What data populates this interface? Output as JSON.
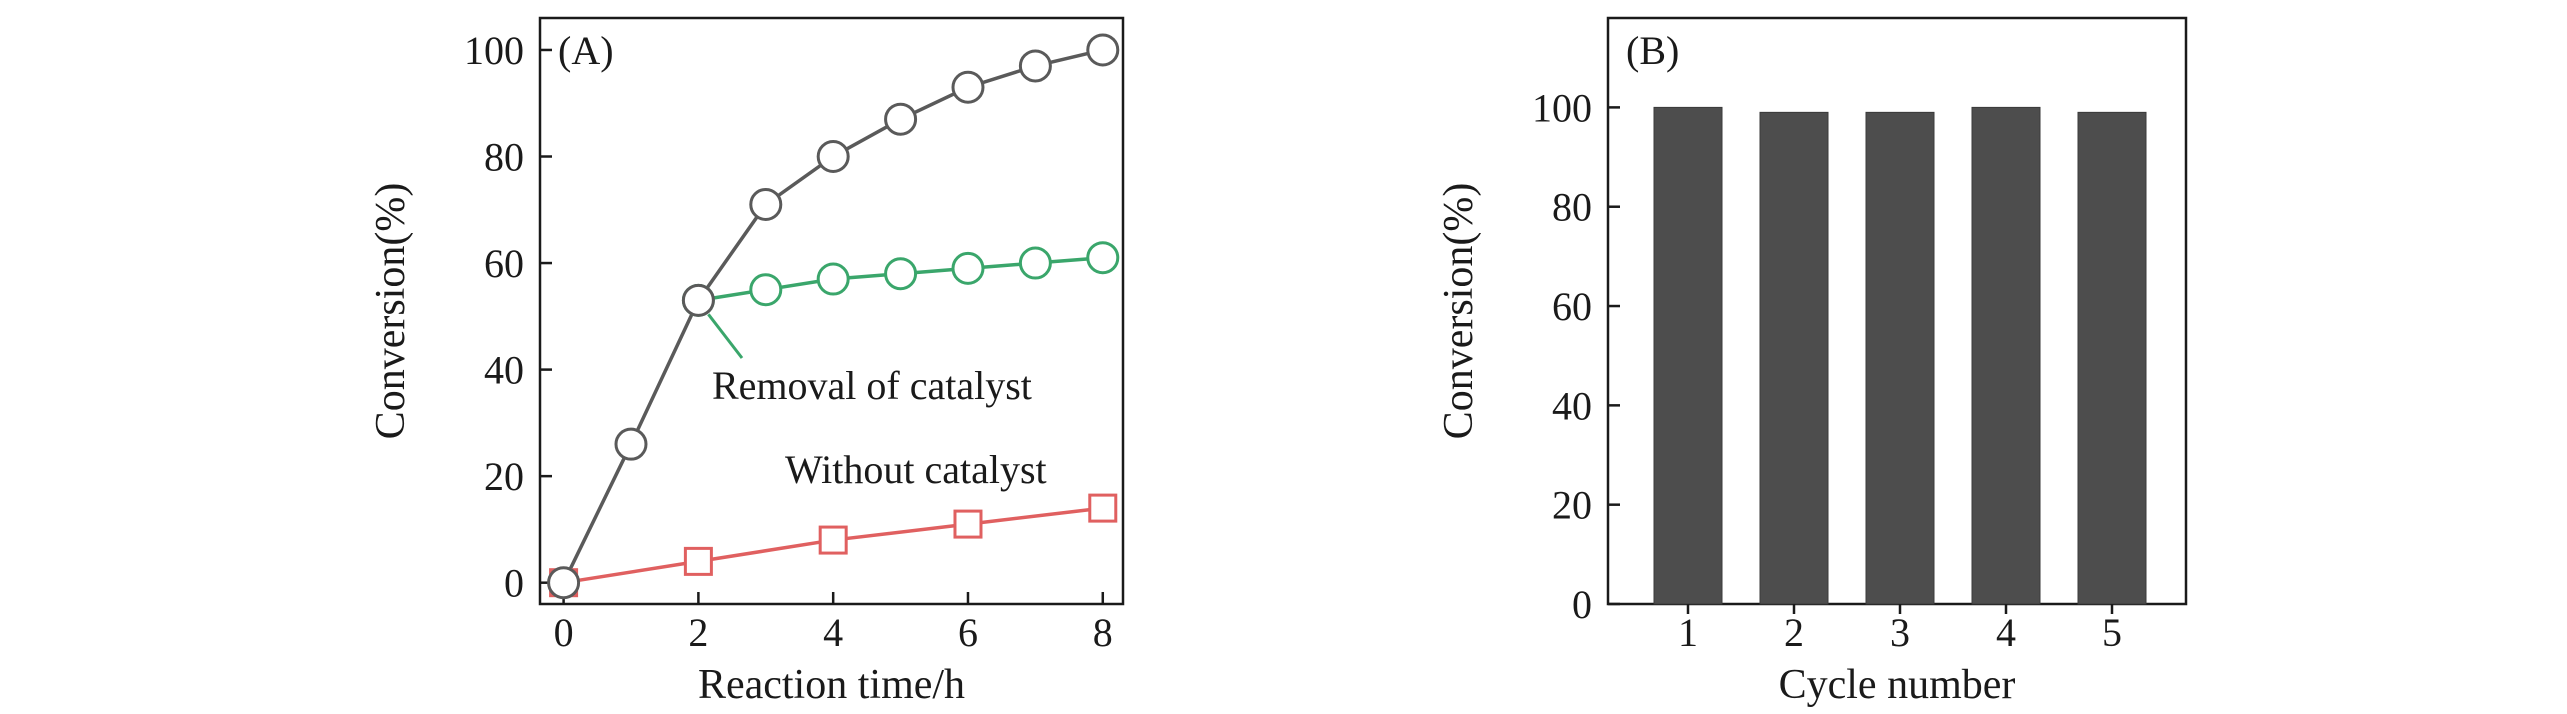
{
  "chart_data": [
    {
      "type": "line",
      "panel_label": "(A)",
      "xlabel": "Reaction time/h",
      "ylabel": "Conversion(%)",
      "xlim": [
        -0.35,
        8.3
      ],
      "ylim": [
        -4,
        106
      ],
      "xticks": [
        0,
        2,
        4,
        6,
        8
      ],
      "yticks": [
        0,
        20,
        40,
        60,
        80,
        100
      ],
      "series": [
        {
          "name": "",
          "color": "#5a5a5a",
          "marker": "circle",
          "x": [
            0,
            1,
            2,
            3,
            4,
            5,
            6,
            7,
            8
          ],
          "y": [
            0,
            26,
            53,
            71,
            80,
            87,
            93,
            97,
            100
          ]
        },
        {
          "name": "Removal of catalyst",
          "color": "#3aa66b",
          "marker": "circle",
          "x": [
            2,
            3,
            4,
            5,
            6,
            7,
            8
          ],
          "y": [
            53,
            55,
            57,
            58,
            59,
            60,
            61
          ]
        },
        {
          "name": "Without catalyst",
          "color": "#e06060",
          "marker": "square",
          "x": [
            0,
            2,
            4,
            6,
            8
          ],
          "y": [
            0,
            4,
            8,
            11,
            14
          ]
        }
      ],
      "annotations": [
        {
          "text": "Removal of catalyst",
          "points_to": [
            2,
            53
          ]
        },
        {
          "text": "Without catalyst"
        }
      ],
      "grid": false
    },
    {
      "type": "bar",
      "panel_label": "(B)",
      "xlabel": "Cycle number",
      "ylabel": "Conversion(%)",
      "categories": [
        "1",
        "2",
        "3",
        "4",
        "5"
      ],
      "values": [
        100,
        99,
        99,
        100,
        99
      ],
      "ylim": [
        0,
        118
      ],
      "yticks": [
        0,
        20,
        40,
        60,
        80,
        100
      ],
      "bar_color": "#4d4d4d",
      "grid": false
    }
  ]
}
